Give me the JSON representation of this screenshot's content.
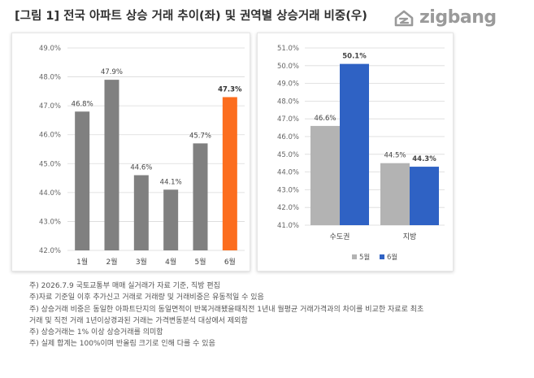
{
  "header": {
    "title": "[그림 1] 전국 아파트 상승 거래 추이(좌) 및 권역별 상승거래 비중(우)",
    "logo_text": "zigbang"
  },
  "colors": {
    "gray_bar": "#808080",
    "highlight_bar": "#fc6d1e",
    "may_bar": "#b3b3b3",
    "june_bar": "#2f62c4",
    "grid": "#d9d9d9",
    "logo": "#9a9a9a"
  },
  "chart_data": [
    {
      "type": "bar",
      "categories": [
        "1월",
        "2월",
        "3월",
        "4월",
        "5월",
        "6월"
      ],
      "values": [
        46.8,
        47.9,
        44.6,
        44.1,
        45.7,
        47.3
      ],
      "value_labels": [
        "46.8%",
        "47.9%",
        "44.6%",
        "44.1%",
        "45.7%",
        "47.3%"
      ],
      "highlight_index": 5,
      "ylim": [
        42.0,
        49.0
      ],
      "yticks": [
        "42.0%",
        "43.0%",
        "44.0%",
        "45.0%",
        "46.0%",
        "47.0%",
        "48.0%",
        "49.0%"
      ],
      "grid": true
    },
    {
      "type": "bar",
      "categories": [
        "수도권",
        "지방"
      ],
      "series": [
        {
          "name": "5월",
          "values": [
            46.6,
            44.5
          ],
          "value_labels": [
            "46.6%",
            "44.5%"
          ]
        },
        {
          "name": "6월",
          "values": [
            50.1,
            44.3
          ],
          "value_labels": [
            "50.1%",
            "44.3%"
          ]
        }
      ],
      "ylim": [
        41.0,
        51.0
      ],
      "yticks": [
        "41.0%",
        "42.0%",
        "43.0%",
        "44.0%",
        "45.0%",
        "46.0%",
        "47.0%",
        "48.0%",
        "49.0%",
        "50.0%",
        "51.0%"
      ],
      "grid": true,
      "legend_position": "bottom"
    }
  ],
  "notes": [
    "주) 2026.7.9 국토교통부 매매 실거래가 자료 기준, 직방 편집",
    "주)자료 기준일 이후 추가신고 거래로 거래량 및 거래비중은 유동적일 수 있음",
    "주) 상승거래 비중은 동일한 아파트단지의 동일면적이 반복거래됐을때직전 1년내 월평균 거래가격과의 차이를 비교한 자료로 최초",
    "거래 및 직전 거래 1년이상경과된 거래는 가격변동분석 대상에서 제외함",
    "주) 상승거래는 1% 이상 상승거래를 의미함",
    "주) 실제 합계는 100%이며 반올림 크기로 인해 다를 수 있음"
  ]
}
